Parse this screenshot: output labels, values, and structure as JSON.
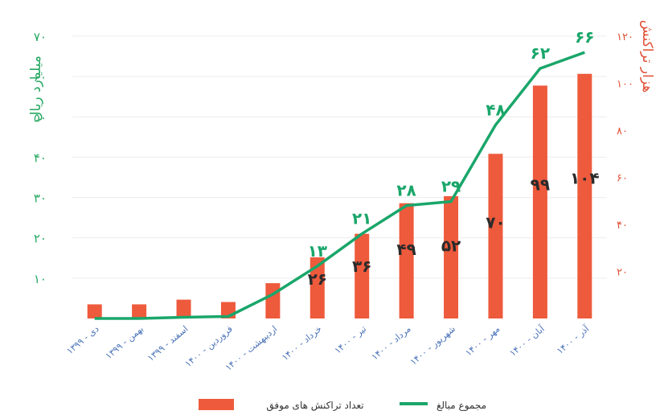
{
  "chart_data": {
    "type": "bar+line",
    "categories": [
      "دی - ۱۳۹۹",
      "بهمن - ۱۳۹۹",
      "اسفند - ۱۳۹۹",
      "فروردین - ۱۴۰۰",
      "اردیبهشت - ۱۴۰۰",
      "خرداد - ۱۴۰۰",
      "تیر - ۱۴۰۰",
      "مرداد - ۱۴۰۰",
      "شهریور - ۱۴۰۰",
      "مهر - ۱۴۰۰",
      "آبان - ۱۴۰۰",
      "آذر - ۱۴۰۰"
    ],
    "bars": {
      "name": "تعداد تراکنش های موفق",
      "axis": "right",
      "color": "#ee5a3c",
      "values": [
        6,
        6,
        8,
        7,
        15,
        26,
        36,
        49,
        52,
        70,
        99,
        104
      ],
      "labels": [
        "",
        "",
        "",
        "",
        "",
        "۲۶",
        "۳۶",
        "۴۹",
        "۵۲",
        "۷۰",
        "۹۹",
        "۱۰۴"
      ]
    },
    "line": {
      "name": "مجموع مبالغ",
      "axis": "left",
      "color": "#1aa66a",
      "values": [
        0,
        0,
        0.3,
        0.5,
        6,
        13,
        21,
        28,
        29,
        48,
        62,
        66
      ],
      "labels": [
        "",
        "",
        "",
        "",
        "",
        "۱۳",
        "۲۱",
        "۲۸",
        "۲۹",
        "۴۸",
        "۶۲",
        "۶۶"
      ]
    },
    "left_axis": {
      "label": "میلیارد ریال",
      "color": "#27a862",
      "range": [
        0,
        70
      ],
      "ticks": [
        10,
        20,
        30,
        40,
        50,
        60,
        70
      ],
      "tick_labels": [
        "۱۰",
        "۲۰",
        "۳۰",
        "۴۰",
        "۵۰",
        "۶۰",
        "۷۰"
      ]
    },
    "right_axis": {
      "label": "هزار تراکنش",
      "color": "#e05036",
      "range": [
        0,
        120
      ],
      "ticks": [
        20,
        40,
        60,
        80,
        100,
        120
      ],
      "tick_labels": [
        "۲۰",
        "۴۰",
        "۶۰",
        "۸۰",
        "۱۰۰",
        "۱۲۰"
      ]
    },
    "grid": true,
    "legend_position": "bottom"
  }
}
